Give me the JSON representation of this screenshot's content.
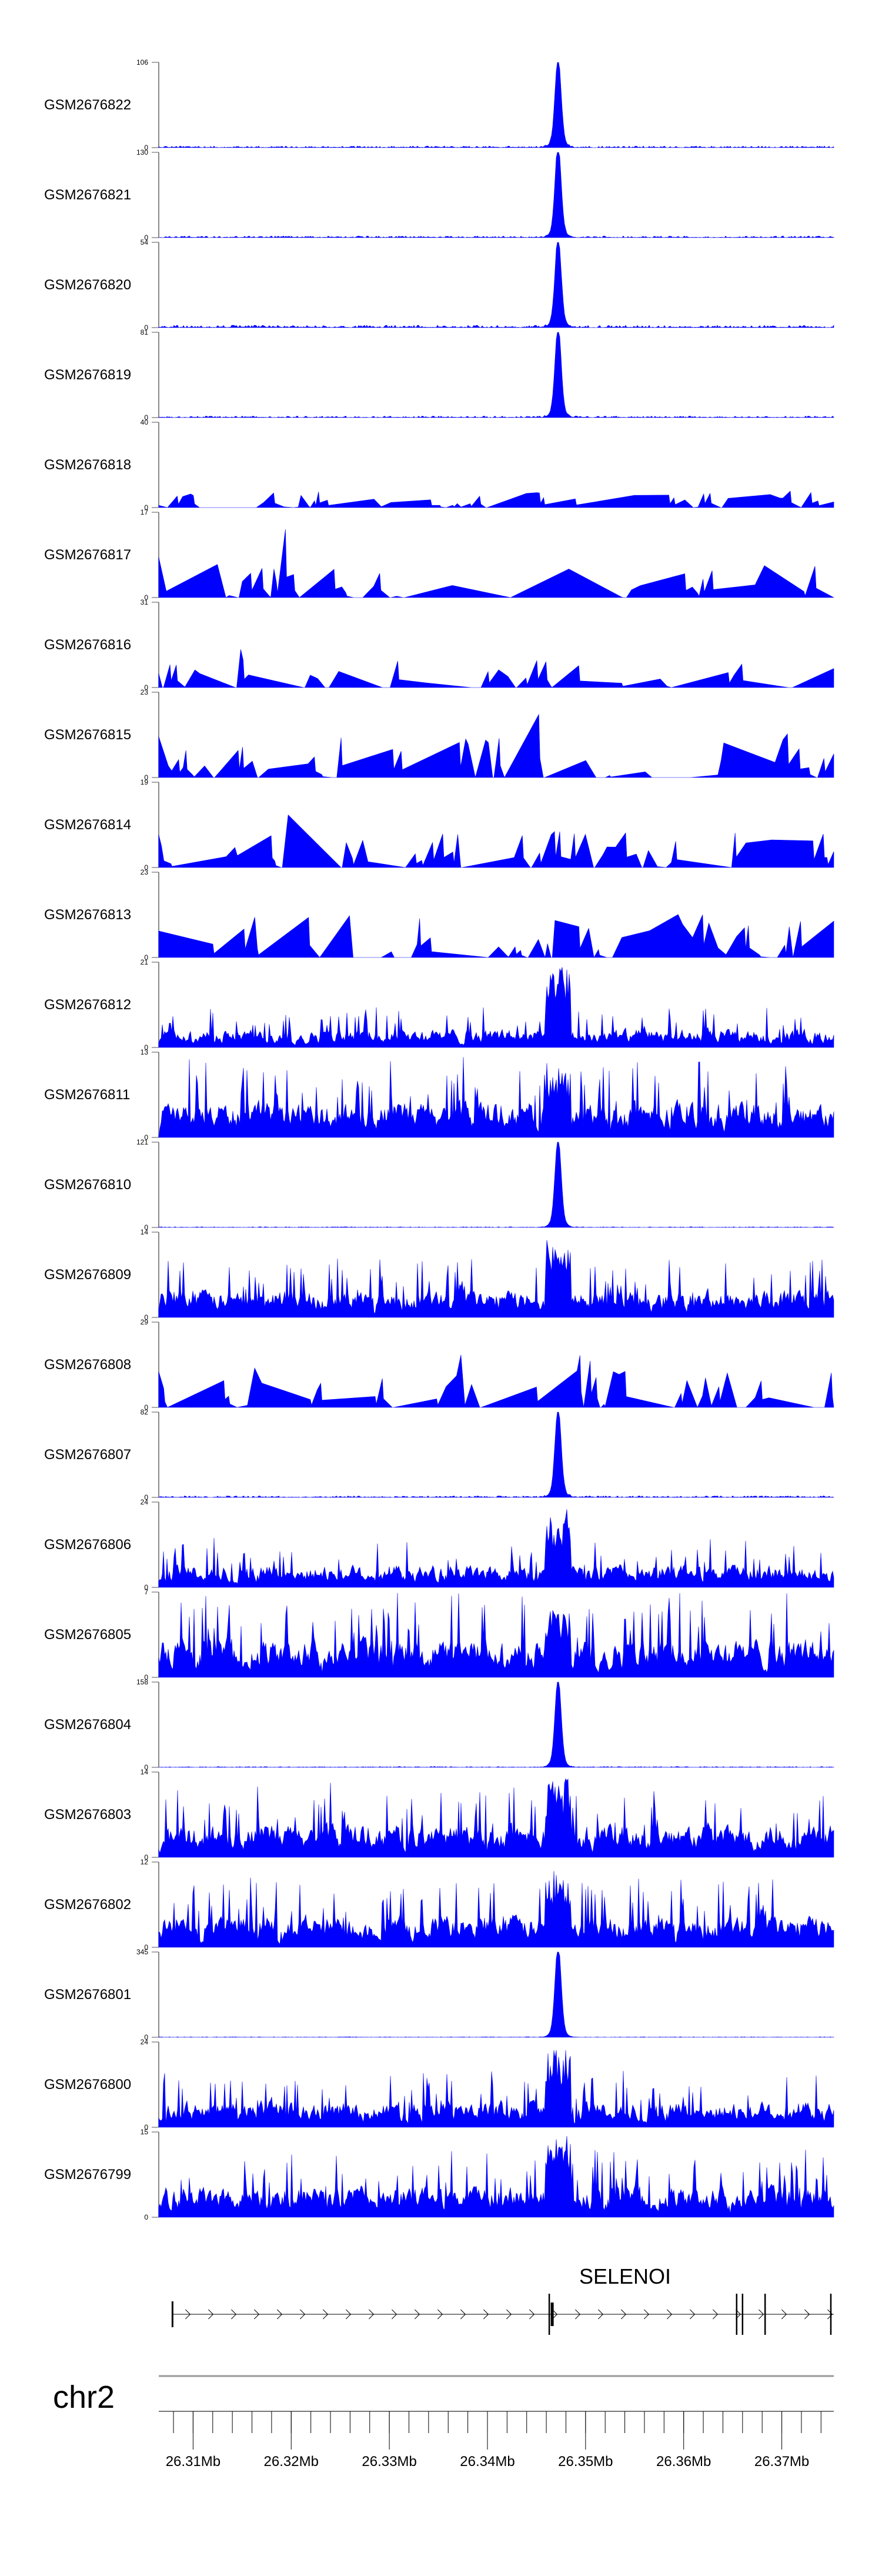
{
  "chart_data": {
    "type": "area",
    "chromosome": "chr2",
    "xlim_mb": [
      26.3065,
      26.3753
    ],
    "x_ticks": [
      "26.31Mb",
      "26.32Mb",
      "26.33Mb",
      "26.34Mb",
      "26.35Mb",
      "26.36Mb",
      "26.37Mb"
    ],
    "x_tick_values_mb": [
      26.31,
      26.32,
      26.33,
      26.34,
      26.35,
      26.36,
      26.37
    ],
    "peak_center_mb": 26.3472,
    "series_color": "#0000ff",
    "tracks": [
      {
        "name": "GSM2676822",
        "ymax": 106,
        "ymin": 0,
        "profile": "sharp-peak",
        "peak": 100,
        "baseline": 4
      },
      {
        "name": "GSM2676821",
        "ymax": 130,
        "ymin": 0,
        "profile": "sharp-peak",
        "peak": 128,
        "baseline": 5
      },
      {
        "name": "GSM2676820",
        "ymax": 54,
        "ymin": 0,
        "profile": "sharp-peak",
        "peak": 52,
        "baseline": 3
      },
      {
        "name": "GSM2676819",
        "ymax": 81,
        "ymin": 0,
        "profile": "sharp-peak",
        "peak": 79,
        "baseline": 3
      },
      {
        "name": "GSM2676818",
        "ymax": 40,
        "ymin": 0,
        "profile": "sparse",
        "peak": 38,
        "baseline": 8
      },
      {
        "name": "GSM2676817",
        "ymax": 17,
        "ymin": 0,
        "profile": "sparse",
        "peak": 11,
        "baseline": 8
      },
      {
        "name": "GSM2676816",
        "ymax": 31,
        "ymin": 0,
        "profile": "sparse",
        "peak": 12,
        "baseline": 10
      },
      {
        "name": "GSM2676815",
        "ymax": 23,
        "ymin": 0,
        "profile": "sparse",
        "peak": 12,
        "baseline": 11
      },
      {
        "name": "GSM2676814",
        "ymax": 19,
        "ymin": 0,
        "profile": "sparse",
        "peak": 8,
        "baseline": 8
      },
      {
        "name": "GSM2676813",
        "ymax": 23,
        "ymin": 0,
        "profile": "sparse",
        "peak": 10,
        "baseline": 12
      },
      {
        "name": "GSM2676812",
        "ymax": 21,
        "ymin": 0,
        "profile": "dense",
        "peak": 20,
        "baseline": 5
      },
      {
        "name": "GSM2676811",
        "ymax": 13,
        "ymin": 0,
        "profile": "dense",
        "peak": 11,
        "baseline": 6
      },
      {
        "name": "GSM2676810",
        "ymax": 121,
        "ymin": 0,
        "profile": "sharp-peak",
        "peak": 115,
        "baseline": 2
      },
      {
        "name": "GSM2676809",
        "ymax": 14,
        "ymin": 0,
        "profile": "dense",
        "peak": 13,
        "baseline": 5
      },
      {
        "name": "GSM2676808",
        "ymax": 29,
        "ymin": 0,
        "profile": "sparse",
        "peak": 12,
        "baseline": 14
      },
      {
        "name": "GSM2676807",
        "ymax": 82,
        "ymin": 0,
        "profile": "sharp-peak",
        "peak": 78,
        "baseline": 3
      },
      {
        "name": "GSM2676806",
        "ymax": 24,
        "ymin": 0,
        "profile": "dense",
        "peak": 22,
        "baseline": 7
      },
      {
        "name": "GSM2676805",
        "ymax": 7,
        "ymin": 0,
        "profile": "dense",
        "peak": 6,
        "baseline": 3.5
      },
      {
        "name": "GSM2676804",
        "ymax": 158,
        "ymin": 0,
        "profile": "sharp-peak",
        "peak": 150,
        "baseline": 3
      },
      {
        "name": "GSM2676803",
        "ymax": 14,
        "ymin": 0,
        "profile": "dense",
        "peak": 13,
        "baseline": 6
      },
      {
        "name": "GSM2676802",
        "ymax": 12,
        "ymin": 0,
        "profile": "dense",
        "peak": 11,
        "baseline": 5
      },
      {
        "name": "GSM2676801",
        "ymax": 345,
        "ymin": 0,
        "profile": "sharp-peak",
        "peak": 340,
        "baseline": 4
      },
      {
        "name": "GSM2676800",
        "ymax": 24,
        "ymin": 0,
        "profile": "dense",
        "peak": 23,
        "baseline": 8
      },
      {
        "name": "GSM2676799",
        "ymax": 15,
        "ymin": 0,
        "profile": "dense",
        "peak": 15,
        "baseline": 6
      }
    ],
    "gene": {
      "name": "SELENOI",
      "strand": "+",
      "start_mb": 26.3079,
      "end_mb": 26.3753,
      "exons_mb": [
        26.3463,
        26.3466,
        26.3654,
        26.366,
        26.3683,
        26.375
      ]
    }
  }
}
